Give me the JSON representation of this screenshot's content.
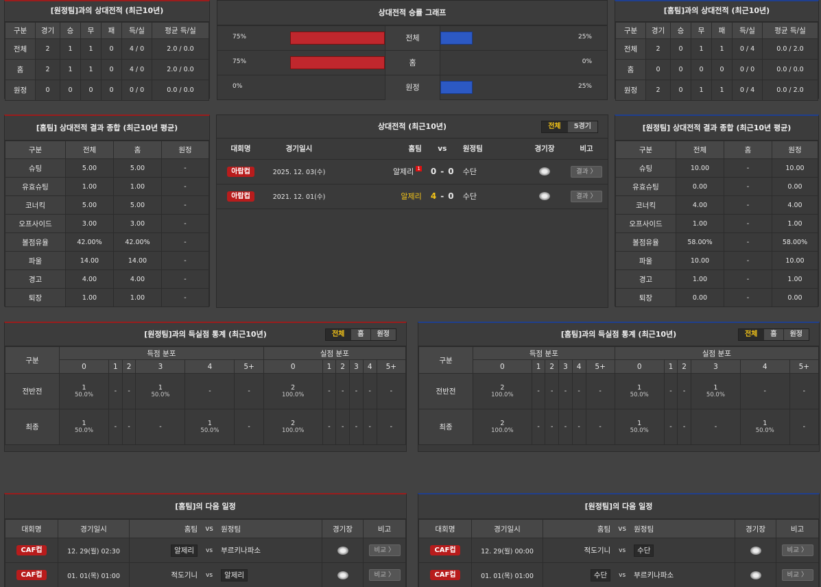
{
  "h2h_home": {
    "title": "[원정팀]과의 상대전적 (최근10년)",
    "headers": [
      "구분",
      "경기",
      "승",
      "무",
      "패",
      "득/실",
      "평균 득/실"
    ],
    "rows": [
      [
        "전체",
        "2",
        "1",
        "1",
        "0",
        "4 / 0",
        "2.0 / 0.0"
      ],
      [
        "홈",
        "2",
        "1",
        "1",
        "0",
        "4 / 0",
        "2.0 / 0.0"
      ],
      [
        "원정",
        "0",
        "0",
        "0",
        "0",
        "0 / 0",
        "0.0 / 0.0"
      ]
    ]
  },
  "graph": {
    "title": "상대전적 승률 그래프",
    "rows": [
      {
        "label": "전체",
        "left": "75%",
        "right": "25%",
        "lv": 75,
        "rv": 25
      },
      {
        "label": "홈",
        "left": "75%",
        "right": "0%",
        "lv": 75,
        "rv": 0
      },
      {
        "label": "원정",
        "left": "0%",
        "right": "25%",
        "lv": 0,
        "rv": 25
      }
    ],
    "colors": {
      "left": "#c0272d",
      "right": "#2c59c4"
    }
  },
  "h2h_away": {
    "title": "[홈팀]과의 상대전적 (최근10년)",
    "headers": [
      "구분",
      "경기",
      "승",
      "무",
      "패",
      "득/실",
      "평균 득/실"
    ],
    "rows": [
      [
        "전체",
        "2",
        "0",
        "1",
        "1",
        "0 / 4",
        "0.0 / 2.0"
      ],
      [
        "홈",
        "0",
        "0",
        "0",
        "0",
        "0 / 0",
        "0.0 / 0.0"
      ],
      [
        "원정",
        "2",
        "0",
        "1",
        "1",
        "0 / 4",
        "0.0 / 2.0"
      ]
    ]
  },
  "sum_home": {
    "title": "[홈팀] 상대전적 결과 종합 (최근10년 평균)",
    "headers": [
      "구분",
      "전체",
      "홈",
      "원정"
    ],
    "rows": [
      [
        "슈팅",
        "5.00",
        "5.00",
        "-"
      ],
      [
        "유효슈팅",
        "1.00",
        "1.00",
        "-"
      ],
      [
        "코너킥",
        "5.00",
        "5.00",
        "-"
      ],
      [
        "오프사이드",
        "3.00",
        "3.00",
        "-"
      ],
      [
        "볼점유율",
        "42.00%",
        "42.00%",
        "-"
      ],
      [
        "파울",
        "14.00",
        "14.00",
        "-"
      ],
      [
        "경고",
        "4.00",
        "4.00",
        "-"
      ],
      [
        "퇴장",
        "1.00",
        "1.00",
        "-"
      ]
    ]
  },
  "sum_away": {
    "title": "[원정팀] 상대전적 결과 종합 (최근10년 평균)",
    "headers": [
      "구분",
      "전체",
      "홈",
      "원정"
    ],
    "rows": [
      [
        "슈팅",
        "10.00",
        "-",
        "10.00"
      ],
      [
        "유효슈팅",
        "0.00",
        "-",
        "0.00"
      ],
      [
        "코너킥",
        "4.00",
        "-",
        "4.00"
      ],
      [
        "오프사이드",
        "1.00",
        "-",
        "1.00"
      ],
      [
        "볼점유율",
        "58.00%",
        "-",
        "58.00%"
      ],
      [
        "파울",
        "10.00",
        "-",
        "10.00"
      ],
      [
        "경고",
        "1.00",
        "-",
        "1.00"
      ],
      [
        "퇴장",
        "0.00",
        "-",
        "0.00"
      ]
    ]
  },
  "matches": {
    "title": "상대전적 (최근10년)",
    "tabs": [
      "전체",
      "5경기"
    ],
    "headers": [
      "대회명",
      "경기일시",
      "홈팀",
      "vs",
      "원정팀",
      "경기장",
      "비고"
    ],
    "rows": [
      {
        "league": "아랍컵",
        "date": "2025. 12. 03(수)",
        "home": "알제리",
        "card": "1",
        "hs": "0",
        "sep": "-",
        "as": "0",
        "away": "수단",
        "btn": "결과 〉",
        "win": false
      },
      {
        "league": "아랍컵",
        "date": "2021. 12. 01(수)",
        "home": "알제리",
        "card": "",
        "hs": "4",
        "sep": "-",
        "as": "0",
        "away": "수단",
        "btn": "결과 〉",
        "win": true
      }
    ]
  },
  "goals_home": {
    "title": "[원정팀]과의 득실점 통계 (최근10년)",
    "tabs": [
      "전체",
      "홈",
      "원정"
    ],
    "h1": "득점 분포",
    "h2": "실점 분포",
    "label": "구분",
    "cols": [
      "0",
      "1",
      "2",
      "3",
      "4",
      "5+"
    ],
    "rows": [
      {
        "label": "전반전",
        "cells": [
          [
            "1",
            "50.0%"
          ],
          [
            "-",
            ""
          ],
          [
            "-",
            ""
          ],
          [
            "1",
            "50.0%"
          ],
          [
            "-",
            ""
          ],
          [
            "-",
            ""
          ],
          [
            "2",
            "100.0%"
          ],
          [
            "-",
            ""
          ],
          [
            "-",
            ""
          ],
          [
            "-",
            ""
          ],
          [
            "-",
            ""
          ],
          [
            "-",
            ""
          ]
        ]
      },
      {
        "label": "최종",
        "cells": [
          [
            "1",
            "50.0%"
          ],
          [
            "-",
            ""
          ],
          [
            "-",
            ""
          ],
          [
            "-",
            ""
          ],
          [
            "1",
            "50.0%"
          ],
          [
            "-",
            ""
          ],
          [
            "2",
            "100.0%"
          ],
          [
            "-",
            ""
          ],
          [
            "-",
            ""
          ],
          [
            "-",
            ""
          ],
          [
            "-",
            ""
          ],
          [
            "-",
            ""
          ]
        ]
      }
    ]
  },
  "goals_away": {
    "title": "[홈팀]과의 득실점 통계 (최근10년)",
    "tabs": [
      "전체",
      "홈",
      "원정"
    ],
    "h1": "득점 분포",
    "h2": "실점 분포",
    "label": "구분",
    "cols": [
      "0",
      "1",
      "2",
      "3",
      "4",
      "5+"
    ],
    "rows": [
      {
        "label": "전반전",
        "cells": [
          [
            "2",
            "100.0%"
          ],
          [
            "-",
            ""
          ],
          [
            "-",
            ""
          ],
          [
            "-",
            ""
          ],
          [
            "-",
            ""
          ],
          [
            "-",
            ""
          ],
          [
            "1",
            "50.0%"
          ],
          [
            "-",
            ""
          ],
          [
            "-",
            ""
          ],
          [
            "1",
            "50.0%"
          ],
          [
            "-",
            ""
          ],
          [
            "-",
            ""
          ]
        ]
      },
      {
        "label": "최종",
        "cells": [
          [
            "2",
            "100.0%"
          ],
          [
            "-",
            ""
          ],
          [
            "-",
            ""
          ],
          [
            "-",
            ""
          ],
          [
            "-",
            ""
          ],
          [
            "-",
            ""
          ],
          [
            "1",
            "50.0%"
          ],
          [
            "-",
            ""
          ],
          [
            "-",
            ""
          ],
          [
            "-",
            ""
          ],
          [
            "1",
            "50.0%"
          ],
          [
            "-",
            ""
          ]
        ]
      }
    ]
  },
  "next_home": {
    "title": "[홈팀]의 다음 일정",
    "headers": [
      "대회명",
      "경기일시",
      "홈팀",
      "vs",
      "원정팀",
      "경기장",
      "비고"
    ],
    "rows": [
      {
        "league": "CAF컵",
        "date": "12. 29(월) 02:30",
        "home": "알제리",
        "away": "부르키나파소",
        "btn": "비교 〉",
        "hb": true,
        "ab": false
      },
      {
        "league": "CAF컵",
        "date": "01. 01(목) 01:00",
        "home": "적도기니",
        "away": "알제리",
        "btn": "비교 〉",
        "hb": false,
        "ab": true
      }
    ]
  },
  "next_away": {
    "title": "[원정팀]의 다음 일정",
    "headers": [
      "대회명",
      "경기일시",
      "홈팀",
      "vs",
      "원정팀",
      "경기장",
      "비고"
    ],
    "rows": [
      {
        "league": "CAF컵",
        "date": "12. 29(월) 00:00",
        "home": "적도기니",
        "away": "수단",
        "btn": "비교 〉",
        "hb": false,
        "ab": true
      },
      {
        "league": "CAF컵",
        "date": "01. 01(목) 01:00",
        "home": "수단",
        "away": "부르키나파소",
        "btn": "비교 〉",
        "hb": true,
        "ab": false
      }
    ]
  }
}
